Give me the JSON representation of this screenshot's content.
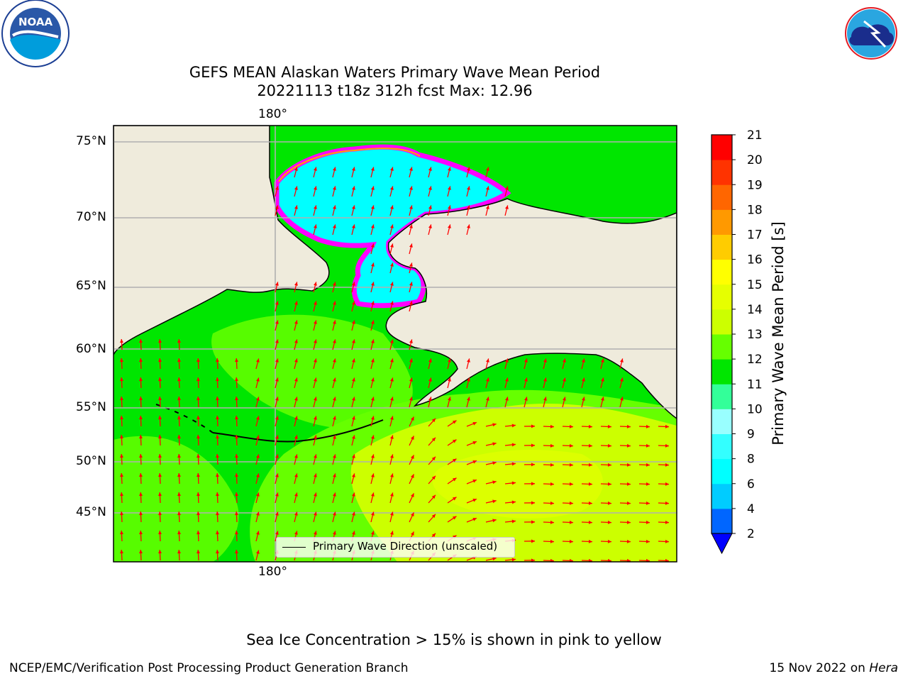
{
  "title_line1": "GEFS MEAN Alaskan Waters Primary Wave Mean Period",
  "title_line2": "20221113 t18z 312h fcst   Max: 12.96",
  "map": {
    "lat_labels": [
      "75°N",
      "70°N",
      "65°N",
      "60°N",
      "55°N",
      "50°N",
      "45°N"
    ],
    "lon_label_top": "180°",
    "lon_label_bottom": "180°",
    "legend_label": "Primary Wave Direction (unscaled)",
    "land_color": "#efebdc",
    "arrow_color": "#ff0000",
    "ice_colors": [
      "#ff00ff",
      "#ff69b4",
      "#ffa500",
      "#ffff00"
    ]
  },
  "colorbar": {
    "label": "Primary Wave Mean Period [s]",
    "ticks": [
      "2",
      "4",
      "6",
      "8",
      "9",
      "10",
      "11",
      "12",
      "13",
      "14",
      "15",
      "16",
      "17",
      "18",
      "19",
      "20",
      "21"
    ],
    "colors": [
      "#0066ff",
      "#00ccff",
      "#00ffff",
      "#33ffff",
      "#99ffff",
      "#33ff99",
      "#00e600",
      "#66ff00",
      "#ccff00",
      "#e6ff00",
      "#ffff00",
      "#ffcc00",
      "#ff9900",
      "#ff6600",
      "#ff3300",
      "#ff0000"
    ],
    "under_color": "#0000ff"
  },
  "logos": {
    "left": "NOAA",
    "right": "NATIONAL WEATHER SERVICE"
  },
  "ice_note": "Sea Ice Concentration > 15% is shown in pink to yellow",
  "credit": "NCEP/EMC/Verification Post Processing Product Generation Branch",
  "date_text": "15 Nov 2022 on ",
  "machine": "Hera"
}
